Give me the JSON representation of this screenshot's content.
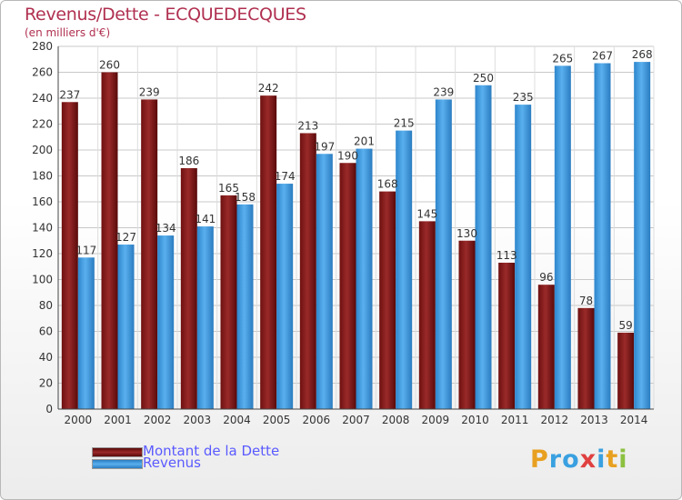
{
  "title": "Revenus/Dette - ECQUEDECQUES",
  "subtitle": "(en milliers d'€)",
  "logo": {
    "letters": [
      "P",
      "r",
      "o",
      "x",
      "i",
      "t",
      "i"
    ],
    "colors": [
      "#e8a020",
      "#3aa0e0",
      "#3aa0e0",
      "#e04040",
      "#3aa0e0",
      "#e8a020",
      "#8cc040"
    ]
  },
  "chart_data": {
    "type": "bar",
    "categories": [
      "2000",
      "2001",
      "2002",
      "2003",
      "2004",
      "2005",
      "2006",
      "2007",
      "2008",
      "2009",
      "2010",
      "2011",
      "2012",
      "2013",
      "2014"
    ],
    "series": [
      {
        "name": "Montant de la Dette",
        "color": "#8b1c1c",
        "values": [
          237,
          260,
          239,
          186,
          165,
          242,
          213,
          190,
          168,
          145,
          130,
          113,
          96,
          78,
          59
        ]
      },
      {
        "name": "Revenus",
        "color": "#3a96dc",
        "values": [
          117,
          127,
          134,
          141,
          158,
          174,
          197,
          201,
          215,
          239,
          250,
          235,
          265,
          267,
          268
        ]
      }
    ],
    "ylim": [
      0,
      280
    ],
    "yticks": [
      "0",
      "20",
      "40",
      "60",
      "80",
      "100",
      "120",
      "140",
      "160",
      "180",
      "200",
      "220",
      "240",
      "260",
      "280"
    ],
    "grid": true,
    "legend": "bottom-left"
  }
}
